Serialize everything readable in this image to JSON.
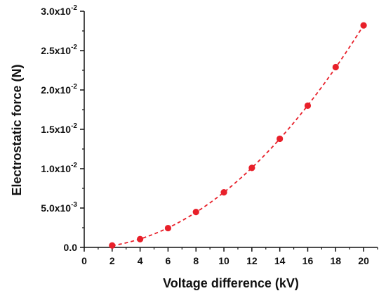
{
  "chart_data": {
    "type": "scatter",
    "xlabel": "Voltage difference (kV)",
    "ylabel": "Electrostatic force (N)",
    "xlim": [
      0,
      21
    ],
    "ylim": [
      0,
      0.03
    ],
    "x_ticks": [
      "0",
      "2",
      "4",
      "6",
      "8",
      "10",
      "12",
      "14",
      "16",
      "18",
      "20"
    ],
    "y_ticks": [
      {
        "mantissa": "0.0",
        "exp": ""
      },
      {
        "mantissa": "5.0x10",
        "exp": "-3"
      },
      {
        "mantissa": "1.0x10",
        "exp": "-2"
      },
      {
        "mantissa": "1.5x10",
        "exp": "-2"
      },
      {
        "mantissa": "2.0x10",
        "exp": "-2"
      },
      {
        "mantissa": "2.5x10",
        "exp": "-2"
      },
      {
        "mantissa": "3.0x10",
        "exp": "-2"
      }
    ],
    "series": [
      {
        "x": [
          2,
          4,
          6,
          8,
          10,
          12,
          14,
          16,
          18,
          20
        ],
        "y": [
          0.00025,
          0.00105,
          0.00245,
          0.0045,
          0.007,
          0.0101,
          0.0138,
          0.018,
          0.0229,
          0.0282
        ],
        "marker_color": "#e8202a",
        "fit_line": "dashed"
      }
    ],
    "grid": false,
    "legend": "none"
  },
  "colors": {
    "series": "#e8202a",
    "axis": "#111111"
  }
}
